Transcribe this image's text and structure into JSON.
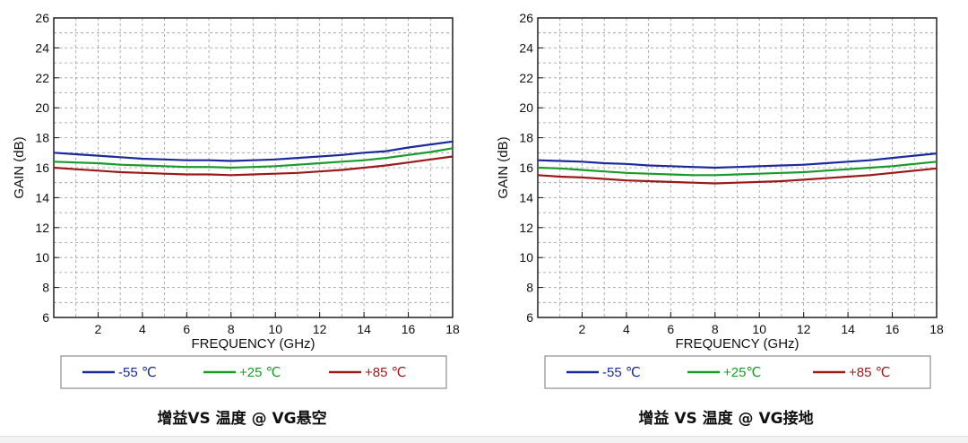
{
  "chart_data": [
    {
      "type": "line",
      "xlabel": "FREQUENCY (GHz)",
      "ylabel": "GAIN (dB)",
      "xlim": [
        0,
        18
      ],
      "ylim": [
        6,
        26
      ],
      "xticks": [
        2,
        4,
        6,
        8,
        10,
        12,
        14,
        16,
        18
      ],
      "yticks": [
        6,
        8,
        10,
        12,
        14,
        16,
        18,
        20,
        22,
        24,
        26
      ],
      "grid": true,
      "legend_position": "bottom",
      "caption": "增益VS 温度 @ VG悬空",
      "x": [
        0,
        1,
        2,
        3,
        4,
        5,
        6,
        7,
        8,
        9,
        10,
        11,
        12,
        13,
        14,
        15,
        16,
        17,
        18
      ],
      "series": [
        {
          "name": "-55 ℃",
          "color": "#1a2a9a",
          "values": [
            17.0,
            16.9,
            16.8,
            16.7,
            16.6,
            16.55,
            16.5,
            16.5,
            16.45,
            16.5,
            16.55,
            16.65,
            16.75,
            16.85,
            17.0,
            17.1,
            17.35,
            17.55,
            17.75
          ]
        },
        {
          "name": "+25 ℃",
          "color": "#1a9a2a",
          "values": [
            16.4,
            16.35,
            16.3,
            16.2,
            16.15,
            16.1,
            16.05,
            16.05,
            16.0,
            16.05,
            16.1,
            16.2,
            16.3,
            16.4,
            16.5,
            16.65,
            16.85,
            17.05,
            17.3
          ]
        },
        {
          "name": "+85 ℃",
          "color": "#9a1a1a",
          "values": [
            16.0,
            15.9,
            15.8,
            15.7,
            15.65,
            15.6,
            15.55,
            15.55,
            15.5,
            15.55,
            15.6,
            15.65,
            15.75,
            15.85,
            16.0,
            16.15,
            16.35,
            16.55,
            16.75
          ]
        }
      ]
    },
    {
      "type": "line",
      "xlabel": "FREQUENCY (GHz)",
      "ylabel": "GAIN (dB)",
      "xlim": [
        0,
        18
      ],
      "ylim": [
        6,
        26
      ],
      "xticks": [
        2,
        4,
        6,
        8,
        10,
        12,
        14,
        16,
        18
      ],
      "yticks": [
        6,
        8,
        10,
        12,
        14,
        16,
        18,
        20,
        22,
        24,
        26
      ],
      "grid": true,
      "legend_position": "bottom",
      "caption": "增益 VS 温度 @ VG接地",
      "x": [
        0,
        1,
        2,
        3,
        4,
        5,
        6,
        7,
        8,
        9,
        10,
        11,
        12,
        13,
        14,
        15,
        16,
        17,
        18
      ],
      "series": [
        {
          "name": "-55 ℃",
          "color": "#1a2a9a",
          "values": [
            16.5,
            16.45,
            16.4,
            16.3,
            16.25,
            16.15,
            16.1,
            16.05,
            16.0,
            16.05,
            16.1,
            16.15,
            16.2,
            16.3,
            16.4,
            16.5,
            16.65,
            16.8,
            16.95
          ]
        },
        {
          "name": "+25℃",
          "color": "#1a9a2a",
          "values": [
            16.0,
            15.95,
            15.85,
            15.75,
            15.65,
            15.6,
            15.55,
            15.5,
            15.5,
            15.55,
            15.6,
            15.65,
            15.7,
            15.8,
            15.9,
            16.0,
            16.1,
            16.25,
            16.4
          ]
        },
        {
          "name": "+85 ℃",
          "color": "#9a1a1a",
          "values": [
            15.5,
            15.4,
            15.35,
            15.25,
            15.15,
            15.1,
            15.05,
            15.0,
            14.95,
            15.0,
            15.05,
            15.1,
            15.2,
            15.3,
            15.4,
            15.5,
            15.65,
            15.8,
            15.95
          ]
        }
      ]
    }
  ]
}
